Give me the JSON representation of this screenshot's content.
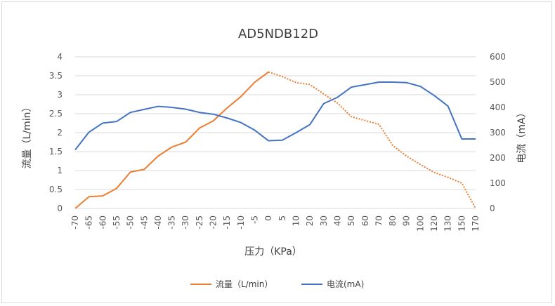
{
  "chart_data": {
    "type": "line",
    "title": "AD5NDB12D",
    "xlabel": "压力（KPa）",
    "ylabel": "流量（L/min）",
    "y2label": "电流（mA）",
    "x": [
      "-70",
      "-65",
      "-60",
      "-55",
      "-50",
      "-45",
      "-40",
      "-35",
      "-30",
      "-25",
      "-20",
      "-15",
      "-10",
      "-5",
      "0",
      "5",
      "10",
      "20",
      "30",
      "40",
      "50",
      "60",
      "70",
      "80",
      "90",
      "100",
      "120",
      "130",
      "150",
      "170"
    ],
    "ylim": [
      0,
      4
    ],
    "yticks": [
      "0",
      "0.5",
      "1",
      "1.5",
      "2",
      "2.5",
      "3",
      "3.5",
      "4"
    ],
    "y2lim": [
      0,
      600
    ],
    "y2ticks": [
      "0",
      "100",
      "200",
      "300",
      "400",
      "500",
      "600"
    ],
    "grid": true,
    "legend_position": "bottom",
    "series": [
      {
        "name": "流量（L/min）",
        "axis": "left",
        "color": "#ED7D31",
        "values": [
          0.0,
          0.31,
          0.33,
          0.53,
          0.96,
          1.03,
          1.38,
          1.62,
          1.75,
          2.12,
          2.31,
          2.65,
          2.95,
          3.33,
          3.6,
          3.48,
          3.32,
          3.27,
          3.02,
          2.78,
          2.42,
          2.32,
          2.22,
          1.66,
          1.38,
          1.16,
          0.95,
          0.82,
          0.67,
          0.0
        ],
        "solid_until_index": 14,
        "after": "dotted"
      },
      {
        "name": "电流(mA)",
        "axis": "right",
        "color": "#4472C4",
        "values": [
          232,
          302,
          338,
          344,
          380,
          392,
          404,
          400,
          393,
          380,
          373,
          358,
          340,
          310,
          268,
          270,
          300,
          332,
          415,
          440,
          480,
          490,
          500,
          500,
          498,
          483,
          447,
          405,
          275,
          275
        ]
      }
    ]
  }
}
